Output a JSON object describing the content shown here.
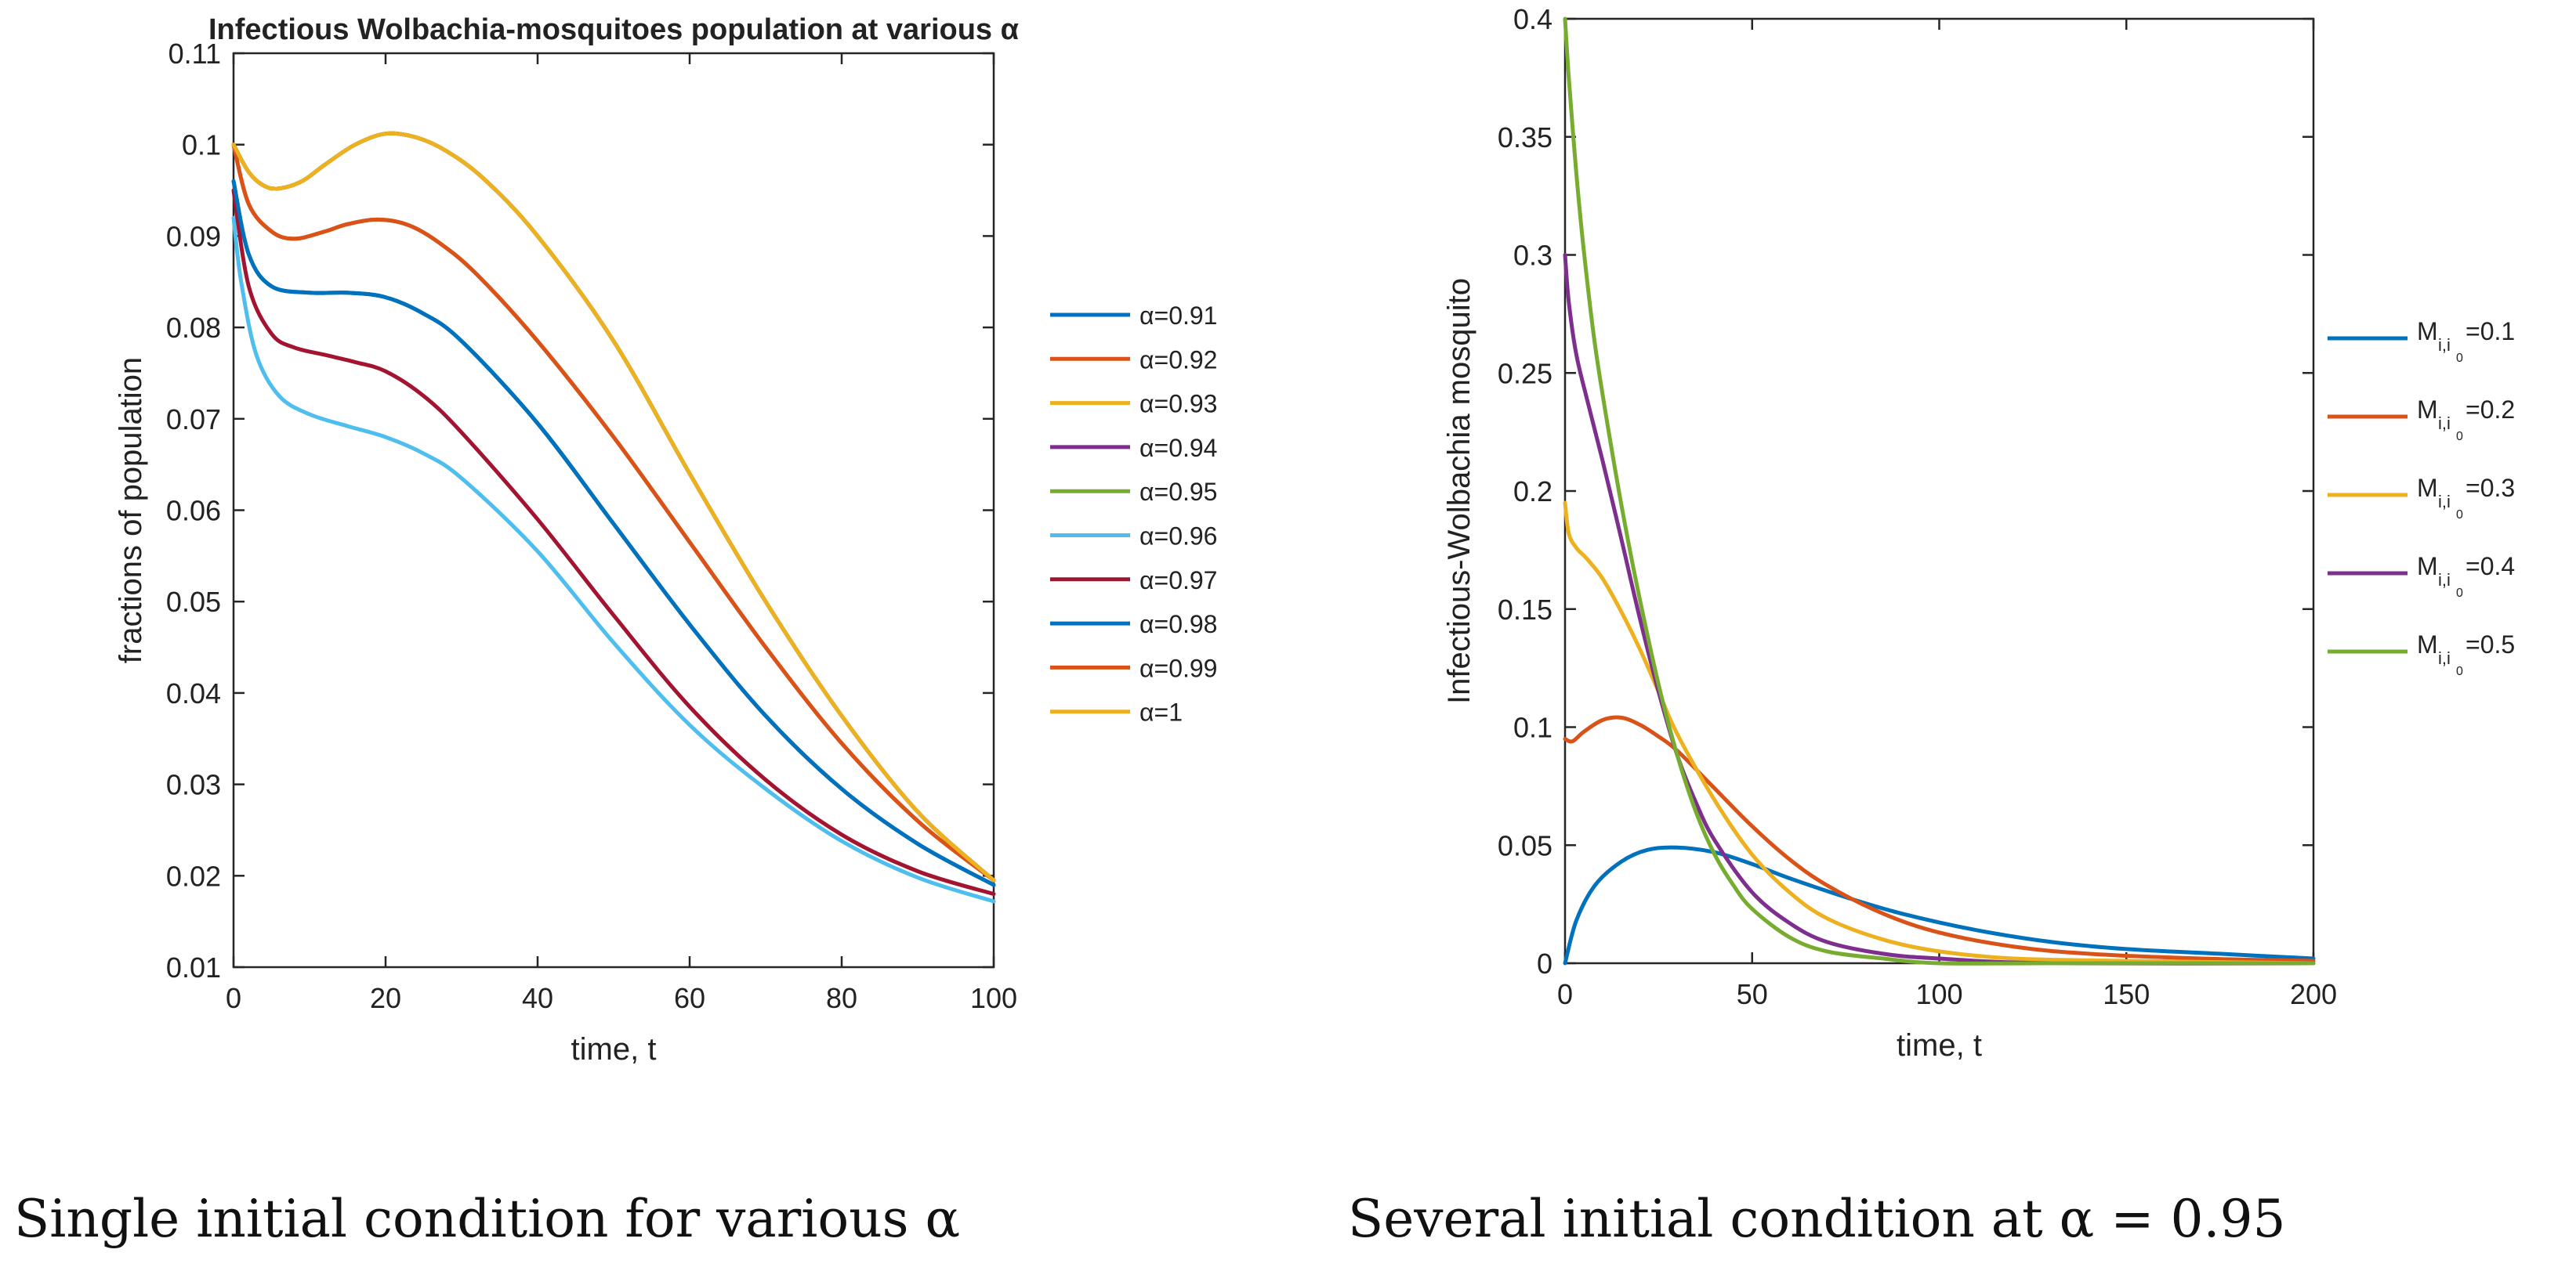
{
  "captions": {
    "left": "Single initial condition for various α",
    "right": "Several initial condition at α = 0.95"
  },
  "chart_data": [
    {
      "type": "line",
      "title": "Infectious Wolbachia-mosquitoes population at various α",
      "xlabel": "time, t",
      "ylabel": "fractions of population",
      "xlim": [
        0,
        100
      ],
      "ylim": [
        0.01,
        0.11
      ],
      "xticks": [
        0,
        20,
        40,
        60,
        80,
        100
      ],
      "yticks": [
        0.01,
        0.02,
        0.03,
        0.04,
        0.05,
        0.06,
        0.07,
        0.08,
        0.09,
        0.1,
        0.11
      ],
      "legend_position": "right",
      "series": [
        {
          "name": "α=0.91",
          "color": "#0072BD",
          "x": [
            0,
            2,
            5,
            10,
            15,
            20,
            25,
            30,
            40,
            50,
            60,
            70,
            80,
            90,
            100
          ],
          "y": [
            0.096,
            0.088,
            0.0845,
            0.0838,
            0.0838,
            0.0833,
            0.0815,
            0.0785,
            0.0695,
            0.0585,
            0.0475,
            0.0375,
            0.0295,
            0.0235,
            0.019
          ]
        },
        {
          "name": "α=0.92",
          "color": "#D95319",
          "x": [
            0,
            2,
            5,
            8,
            12,
            15,
            19,
            23,
            27,
            32,
            40,
            50,
            60,
            70,
            80,
            90,
            100
          ],
          "y": [
            0.1,
            0.0935,
            0.0905,
            0.0897,
            0.0905,
            0.0913,
            0.0918,
            0.0912,
            0.0893,
            0.0858,
            0.0785,
            0.068,
            0.0565,
            0.045,
            0.0345,
            0.026,
            0.0195
          ]
        },
        {
          "name": "α=0.93",
          "color": "#EDB120",
          "x": [
            0,
            2,
            4,
            6,
            9,
            12,
            16,
            20,
            24,
            28,
            33,
            40,
            50,
            60,
            70,
            80,
            90,
            100
          ],
          "y": [
            0.1,
            0.097,
            0.0955,
            0.0952,
            0.096,
            0.0978,
            0.1,
            0.1012,
            0.1008,
            0.0993,
            0.0962,
            0.09,
            0.0785,
            0.064,
            0.05,
            0.0375,
            0.027,
            0.0195
          ]
        },
        {
          "name": "α=0.94",
          "color": "#7E2F8E",
          "x": [
            0,
            2,
            4,
            6,
            9,
            12,
            16,
            20,
            24,
            28,
            33,
            40,
            50,
            60,
            70,
            80,
            90,
            100
          ],
          "y": [
            0.1,
            0.097,
            0.0955,
            0.0952,
            0.096,
            0.0978,
            0.1,
            0.1012,
            0.1008,
            0.0993,
            0.0962,
            0.09,
            0.0785,
            0.064,
            0.05,
            0.0375,
            0.027,
            0.0195
          ]
        },
        {
          "name": "α=0.95",
          "color": "#77AC30",
          "x": [
            0,
            2,
            4,
            6,
            9,
            12,
            16,
            20,
            24,
            28,
            33,
            40,
            50,
            60,
            70,
            80,
            90,
            100
          ],
          "y": [
            0.1,
            0.097,
            0.0955,
            0.0952,
            0.096,
            0.0978,
            0.1,
            0.1012,
            0.1008,
            0.0993,
            0.0962,
            0.09,
            0.0785,
            0.064,
            0.05,
            0.0375,
            0.027,
            0.0195
          ]
        },
        {
          "name": "α=0.96",
          "color": "#4DBEEE",
          "x": [
            0,
            1,
            3,
            6,
            10,
            15,
            20,
            25,
            30,
            40,
            50,
            60,
            70,
            80,
            90,
            100
          ],
          "y": [
            0.092,
            0.085,
            0.077,
            0.0725,
            0.0705,
            0.0692,
            0.068,
            0.0662,
            0.0635,
            0.0555,
            0.0455,
            0.0365,
            0.0295,
            0.0238,
            0.0198,
            0.0172
          ]
        },
        {
          "name": "α=0.97",
          "color": "#A2142F",
          "x": [
            0,
            2,
            5,
            8,
            12,
            16,
            20,
            25,
            30,
            40,
            50,
            60,
            70,
            80,
            90,
            100
          ],
          "y": [
            0.095,
            0.0845,
            0.0793,
            0.0778,
            0.077,
            0.0762,
            0.0752,
            0.0725,
            0.0685,
            0.059,
            0.0485,
            0.0385,
            0.0305,
            0.0245,
            0.0205,
            0.018
          ]
        },
        {
          "name": "α=0.98",
          "color": "#0072BD",
          "x": [
            0,
            2,
            5,
            10,
            15,
            20,
            25,
            30,
            40,
            50,
            60,
            70,
            80,
            90,
            100
          ],
          "y": [
            0.096,
            0.088,
            0.0845,
            0.0838,
            0.0838,
            0.0833,
            0.0815,
            0.0785,
            0.0695,
            0.0585,
            0.0475,
            0.0375,
            0.0295,
            0.0235,
            0.019
          ]
        },
        {
          "name": "α=0.99",
          "color": "#D95319",
          "x": [
            0,
            2,
            5,
            8,
            12,
            15,
            19,
            23,
            27,
            32,
            40,
            50,
            60,
            70,
            80,
            90,
            100
          ],
          "y": [
            0.1,
            0.0935,
            0.0905,
            0.0897,
            0.0905,
            0.0913,
            0.0918,
            0.0912,
            0.0893,
            0.0858,
            0.0785,
            0.068,
            0.0565,
            0.045,
            0.0345,
            0.026,
            0.0195
          ]
        },
        {
          "name": "α=1",
          "color": "#EDB120",
          "x": [
            0,
            2,
            4,
            6,
            9,
            12,
            16,
            20,
            24,
            28,
            33,
            40,
            50,
            60,
            70,
            80,
            90,
            100
          ],
          "y": [
            0.1,
            0.097,
            0.0955,
            0.0952,
            0.096,
            0.0978,
            0.1,
            0.1012,
            0.1008,
            0.0993,
            0.0962,
            0.09,
            0.0785,
            0.064,
            0.05,
            0.0375,
            0.027,
            0.0195
          ]
        }
      ]
    },
    {
      "type": "line",
      "title": "",
      "xlabel": "time, t",
      "ylabel": "Infectious-Wolbachia mosquito",
      "xlim": [
        0,
        200
      ],
      "ylim": [
        0,
        0.4
      ],
      "xticks": [
        0,
        50,
        100,
        150,
        200
      ],
      "yticks": [
        0,
        0.05,
        0.1,
        0.15,
        0.2,
        0.25,
        0.3,
        0.35,
        0.4
      ],
      "legend_position": "right",
      "legend_label_main": "M",
      "legend_label_sub": "i,i",
      "legend_label_subsub": "0",
      "series": [
        {
          "name": "M_i,i0=0.1",
          "value_label": "=0.1",
          "color": "#0072BD",
          "x": [
            0,
            3,
            8,
            15,
            22,
            30,
            40,
            50,
            60,
            75,
            90,
            110,
            130,
            150,
            175,
            200
          ],
          "y": [
            0,
            0.018,
            0.033,
            0.043,
            0.048,
            0.049,
            0.047,
            0.042,
            0.036,
            0.028,
            0.021,
            0.014,
            0.009,
            0.006,
            0.004,
            0.002
          ]
        },
        {
          "name": "M_i,i0=0.2",
          "value_label": "=0.2",
          "color": "#D95319",
          "x": [
            0,
            2,
            5,
            10,
            15,
            20,
            25,
            30,
            40,
            50,
            60,
            70,
            85,
            100,
            120,
            140,
            170,
            200
          ],
          "y": [
            0.095,
            0.094,
            0.098,
            0.103,
            0.104,
            0.101,
            0.096,
            0.09,
            0.074,
            0.058,
            0.044,
            0.033,
            0.021,
            0.013,
            0.007,
            0.004,
            0.002,
            0.001
          ]
        },
        {
          "name": "M_i,i0=0.3",
          "value_label": "=0.3",
          "color": "#EDB120",
          "x": [
            0,
            1,
            3,
            6,
            10,
            15,
            20,
            25,
            30,
            40,
            50,
            60,
            70,
            85,
            100,
            120,
            150,
            200
          ],
          "y": [
            0.195,
            0.182,
            0.176,
            0.171,
            0.163,
            0.149,
            0.133,
            0.115,
            0.097,
            0.069,
            0.046,
            0.03,
            0.019,
            0.01,
            0.005,
            0.002,
            0.001,
            0
          ]
        },
        {
          "name": "M_i,i0=0.4",
          "value_label": "=0.4",
          "color": "#7E2F8E",
          "x": [
            0,
            1,
            3,
            6,
            10,
            15,
            20,
            25,
            30,
            35,
            40,
            50,
            60,
            70,
            85,
            100,
            130,
            200
          ],
          "y": [
            0.3,
            0.28,
            0.258,
            0.238,
            0.213,
            0.18,
            0.146,
            0.115,
            0.088,
            0.068,
            0.052,
            0.03,
            0.017,
            0.009,
            0.004,
            0.002,
            0,
            0
          ]
        },
        {
          "name": "M_i,i0=0.5",
          "value_label": "=0.5",
          "color": "#77AC30",
          "x": [
            0,
            1,
            3,
            5,
            8,
            12,
            16,
            20,
            25,
            30,
            35,
            40,
            45,
            50,
            60,
            70,
            85,
            100,
            130,
            200
          ],
          "y": [
            0.4,
            0.375,
            0.335,
            0.302,
            0.262,
            0.222,
            0.186,
            0.154,
            0.118,
            0.088,
            0.064,
            0.046,
            0.033,
            0.023,
            0.011,
            0.005,
            0.002,
            0,
            0,
            0
          ]
        }
      ]
    }
  ]
}
